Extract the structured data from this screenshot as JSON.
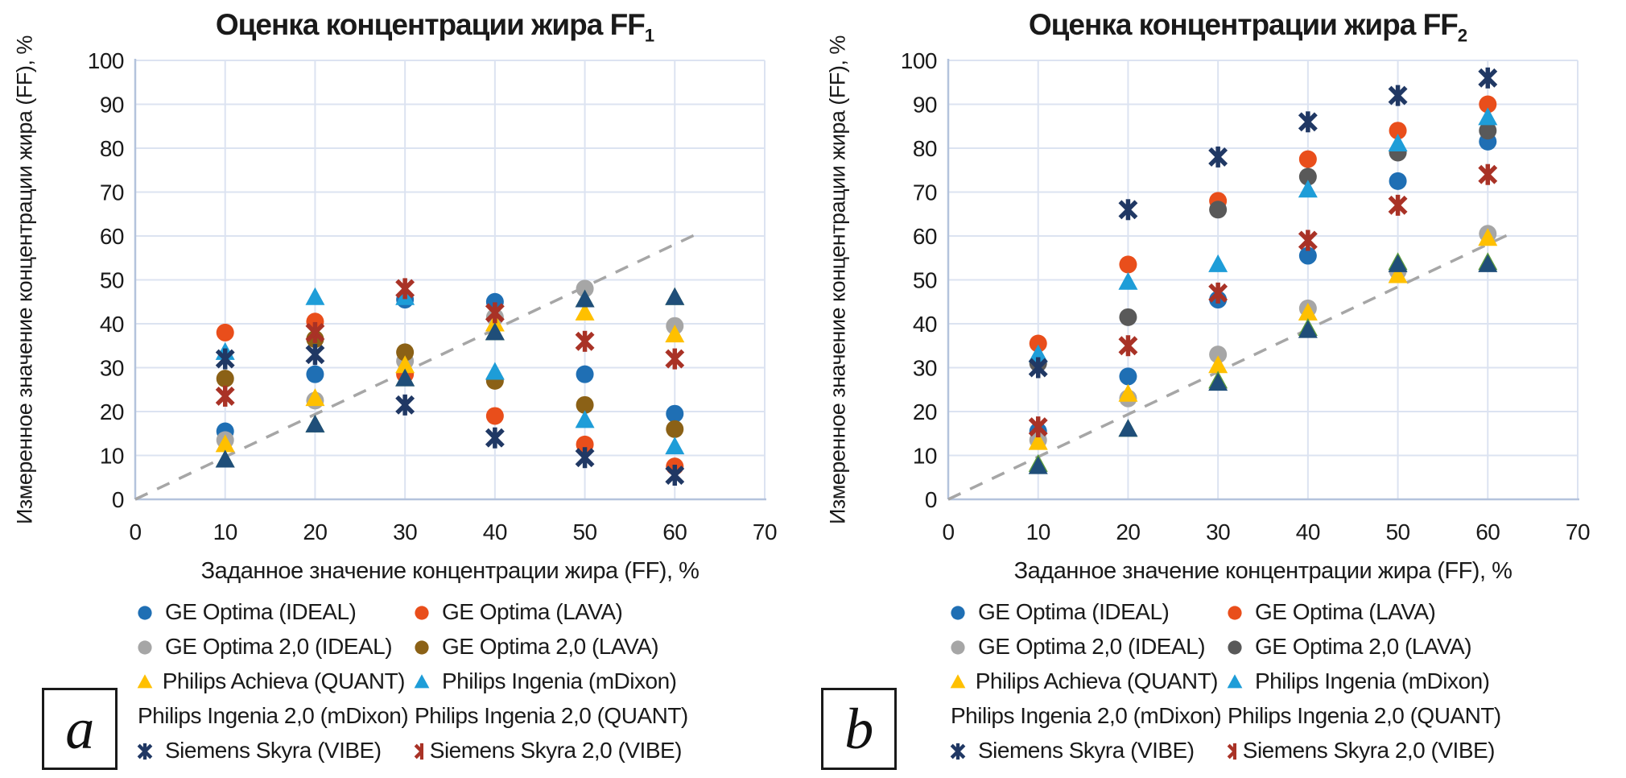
{
  "figure": {
    "background": "#FFFFFF",
    "grid_color": "#DCE3F1",
    "axis_color": "#B4C3DC",
    "dashed_line_color": "#A6A6A6",
    "text_color": "#1A1A1A"
  },
  "chart_data": [
    {
      "type": "scatter",
      "panel_label": "a",
      "title": "Оценка концентрации жира FF1",
      "title_main": "Оценка концентрации жира FF",
      "title_sub": "1",
      "xlabel": "Заданное значение концентрации жира (FF), %",
      "ylabel": "Измеренное значение концентрации жира (FF), %",
      "xlim": [
        0,
        70
      ],
      "ylim": [
        0,
        100
      ],
      "xticks": [
        0,
        10,
        20,
        30,
        40,
        50,
        60,
        70
      ],
      "yticks": [
        0,
        10,
        20,
        30,
        40,
        50,
        60,
        70,
        80,
        90,
        100
      ],
      "grid": true,
      "legend_position": "bottom",
      "identity_line": {
        "style": "dashed",
        "x": [
          0,
          63
        ],
        "y": [
          0,
          61
        ]
      },
      "x": [
        10,
        20,
        30,
        40,
        50,
        60
      ],
      "series": [
        {
          "name": "GE Optima (IDEAL)",
          "marker": "circle",
          "color": "#1F6FB4",
          "values": [
            15.5,
            28.5,
            45.5,
            45,
            28.5,
            19.5
          ]
        },
        {
          "name": "GE Optima (LAVA)",
          "marker": "circle",
          "color": "#E94E1B",
          "values": [
            38,
            40.5,
            28.5,
            19,
            12.5,
            7.5
          ]
        },
        {
          "name": "GE Optima 2,0 (IDEAL)",
          "marker": "circle",
          "color": "#A6A6A6",
          "values": [
            13.5,
            22.5,
            31.5,
            41.5,
            48,
            39.5
          ]
        },
        {
          "name": "GE Optima 2,0 (LAVA)",
          "marker": "circle",
          "color": "#8B6116",
          "values": [
            27.5,
            36.5,
            33.5,
            27,
            21.5,
            16
          ]
        },
        {
          "name": "Philips Achieva (QUANT)",
          "marker": "triangle",
          "color": "#FFC000",
          "values": [
            12.5,
            23,
            30.5,
            40,
            42.5,
            37.5
          ]
        },
        {
          "name": "Philips Ingenia (mDixon)",
          "marker": "triangle",
          "color": "#1E9DD8",
          "values": [
            33.5,
            46,
            46,
            29,
            18,
            12
          ]
        },
        {
          "name": "Philips Ingenia 2,0 (mDixon)",
          "marker": "triangle",
          "color": "#5B9B3C",
          "values": [
            9,
            17,
            27.5,
            38,
            45.5,
            46
          ],
          "note": "markers coincide with Philips Ingenia 2,0 (QUANT) and are hidden behind them"
        },
        {
          "name": "Philips Ingenia 2,0 (QUANT)",
          "marker": "triangle",
          "color": "#1F4E79",
          "values": [
            9,
            17,
            27.5,
            38,
            45.5,
            46
          ]
        },
        {
          "name": "Siemens Skyra (VIBE)",
          "marker": "asterisk",
          "color": "#203864",
          "values": [
            32,
            33,
            21.5,
            14,
            9.5,
            5.5
          ]
        },
        {
          "name": "Siemens Skyra 2,0 (VIBE)",
          "marker": "asterisk",
          "color": "#A93226",
          "values": [
            23.5,
            38,
            48,
            42.5,
            36,
            32
          ]
        }
      ]
    },
    {
      "type": "scatter",
      "panel_label": "b",
      "title": "Оценка концентрации жира FF2",
      "title_main": "Оценка концентрации жира FF",
      "title_sub": "2",
      "xlabel": "Заданное значение концентрации жира (FF), %",
      "ylabel": "Измеренное значение концентрации жира (FF), %",
      "xlim": [
        0,
        70
      ],
      "ylim": [
        0,
        100
      ],
      "xticks": [
        0,
        10,
        20,
        30,
        40,
        50,
        60,
        70
      ],
      "yticks": [
        0,
        10,
        20,
        30,
        40,
        50,
        60,
        70,
        80,
        90,
        100
      ],
      "grid": true,
      "legend_position": "bottom",
      "identity_line": {
        "style": "dashed",
        "x": [
          0,
          63
        ],
        "y": [
          0,
          61
        ]
      },
      "x": [
        10,
        20,
        30,
        40,
        50,
        60
      ],
      "series": [
        {
          "name": "GE Optima (IDEAL)",
          "marker": "circle",
          "color": "#1F6FB4",
          "values": [
            15.5,
            28,
            45.5,
            55.5,
            72.5,
            81.5
          ]
        },
        {
          "name": "GE Optima (LAVA)",
          "marker": "circle",
          "color": "#E94E1B",
          "values": [
            35.5,
            53.5,
            68,
            77.5,
            84,
            90
          ]
        },
        {
          "name": "GE Optima 2,0 (IDEAL)",
          "marker": "circle",
          "color": "#A6A6A6",
          "values": [
            13.5,
            23,
            33,
            43.5,
            52,
            60.5
          ]
        },
        {
          "name": "GE Optima 2,0 (LAVA)",
          "marker": "circle",
          "color": "#595959",
          "values": [
            31,
            41.5,
            66,
            73.5,
            79,
            84
          ]
        },
        {
          "name": "Philips Achieva (QUANT)",
          "marker": "triangle",
          "color": "#FFC000",
          "values": [
            13,
            24,
            30.5,
            42.5,
            51,
            59.5
          ]
        },
        {
          "name": "Philips Ingenia (mDixon)",
          "marker": "triangle",
          "color": "#1E9DD8",
          "values": [
            33,
            49.5,
            53.5,
            70.5,
            81,
            87
          ]
        },
        {
          "name": "Philips Ingenia 2,0 (mDixon)",
          "marker": "triangle",
          "color": "#5B9B3C",
          "values": [
            8,
            16,
            27,
            39,
            54,
            54
          ],
          "note": "almost fully hidden behind Philips Ingenia 2,0 (QUANT) markers"
        },
        {
          "name": "Philips Ingenia 2,0 (QUANT)",
          "marker": "triangle",
          "color": "#1F4E79",
          "values": [
            7.5,
            16,
            26.5,
            38.5,
            53.5,
            53.5
          ]
        },
        {
          "name": "Siemens Skyra (VIBE)",
          "marker": "asterisk",
          "color": "#203864",
          "values": [
            30,
            66,
            78,
            86,
            92,
            96
          ]
        },
        {
          "name": "Siemens Skyra 2,0 (VIBE)",
          "marker": "asterisk",
          "color": "#A93226",
          "values": [
            16.5,
            35,
            47,
            59,
            67,
            74
          ]
        }
      ]
    }
  ]
}
